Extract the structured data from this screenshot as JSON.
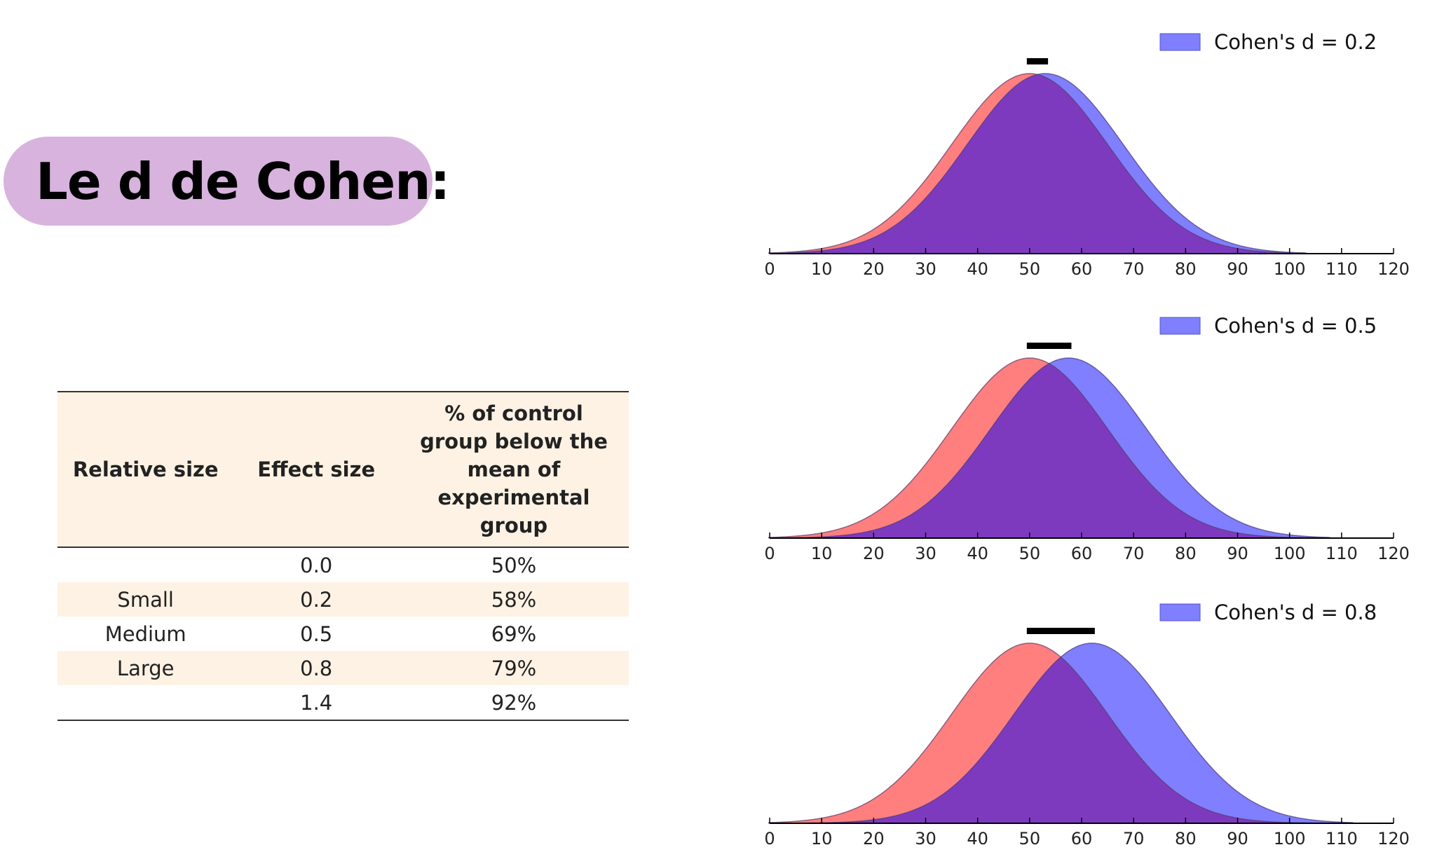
{
  "title": "Le d de Cohen:",
  "table": {
    "headers": [
      "Relative size",
      "Effect size",
      "% of control group below the mean of experimental group"
    ],
    "rows": [
      [
        "",
        "0.0",
        "50%"
      ],
      [
        "Small",
        "0.2",
        "58%"
      ],
      [
        "Medium",
        "0.5",
        "69%"
      ],
      [
        "Large",
        "0.8",
        "79%"
      ],
      [
        "",
        "1.4",
        "92%"
      ]
    ]
  },
  "colors": {
    "control": "#ff7f7f",
    "experimental": "#7f7fff",
    "overlap": "#7e3abf",
    "pill": "#d7b3de"
  },
  "chart_data": [
    {
      "type": "area",
      "legend": "Cohen's d = 0.2",
      "control_mean": 50,
      "sd": 15,
      "d": 0.2,
      "experimental_mean": 53,
      "xlim": [
        0,
        120
      ],
      "xticks": [
        0,
        10,
        20,
        30,
        40,
        50,
        60,
        70,
        80,
        90,
        100,
        110,
        120
      ],
      "legend_position": "top-right"
    },
    {
      "type": "area",
      "legend": "Cohen's d = 0.5",
      "control_mean": 50,
      "sd": 15,
      "d": 0.5,
      "experimental_mean": 57.5,
      "xlim": [
        0,
        120
      ],
      "xticks": [
        0,
        10,
        20,
        30,
        40,
        50,
        60,
        70,
        80,
        90,
        100,
        110,
        120
      ],
      "legend_position": "top-right"
    },
    {
      "type": "area",
      "legend": "Cohen's d = 0.8",
      "control_mean": 50,
      "sd": 15,
      "d": 0.8,
      "experimental_mean": 62,
      "xlim": [
        0,
        120
      ],
      "xticks": [
        0,
        10,
        20,
        30,
        40,
        50,
        60,
        70,
        80,
        90,
        100,
        110,
        120
      ],
      "legend_position": "top-right"
    }
  ]
}
